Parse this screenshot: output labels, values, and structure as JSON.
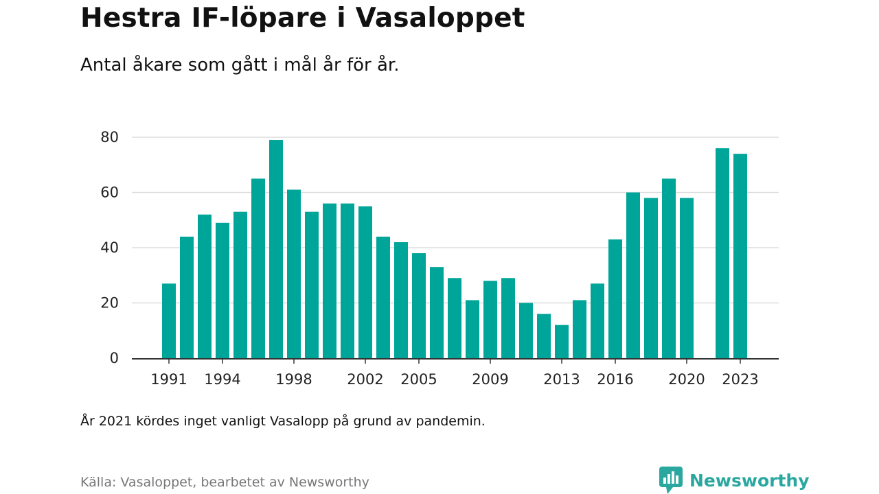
{
  "header": {
    "title": "Hestra IF-löpare i Vasaloppet",
    "subtitle": "Antal åkare som gått i mål år för år."
  },
  "footer": {
    "note": "År 2021 kördes inget vanligt Vasalopp på grund av pandemin.",
    "source": "Källa: Vasaloppet, bearbetet av Newsworthy",
    "brand": "Newsworthy"
  },
  "colors": {
    "bar": "#00a59a",
    "grid": "#dddddd",
    "axis": "#333333",
    "brand": "#2aa8a0"
  },
  "icons": {
    "brand": "newsworthy-logo-icon"
  },
  "chart_data": {
    "type": "bar",
    "title": "Hestra IF-löpare i Vasaloppet",
    "subtitle": "Antal åkare som gått i mål år för år.",
    "xlabel": "",
    "ylabel": "",
    "ylim": [
      0,
      80
    ],
    "yticks": [
      0,
      20,
      40,
      60,
      80
    ],
    "grid": true,
    "legend": "none",
    "xticks": [
      "1991",
      "1994",
      "1998",
      "2002",
      "2005",
      "2009",
      "2013",
      "2016",
      "2020",
      "2023"
    ],
    "categories": [
      "1991",
      "1992",
      "1993",
      "1994",
      "1995",
      "1996",
      "1997",
      "1998",
      "1999",
      "2000",
      "2001",
      "2002",
      "2003",
      "2004",
      "2005",
      "2006",
      "2007",
      "2008",
      "2009",
      "2010",
      "2011",
      "2012",
      "2013",
      "2014",
      "2015",
      "2016",
      "2017",
      "2018",
      "2019",
      "2020",
      "2021",
      "2022",
      "2023"
    ],
    "values": [
      27,
      44,
      52,
      49,
      53,
      65,
      79,
      61,
      53,
      56,
      56,
      55,
      44,
      42,
      38,
      33,
      29,
      21,
      28,
      29,
      20,
      16,
      12,
      21,
      27,
      43,
      60,
      58,
      65,
      58,
      null,
      76,
      74
    ]
  }
}
